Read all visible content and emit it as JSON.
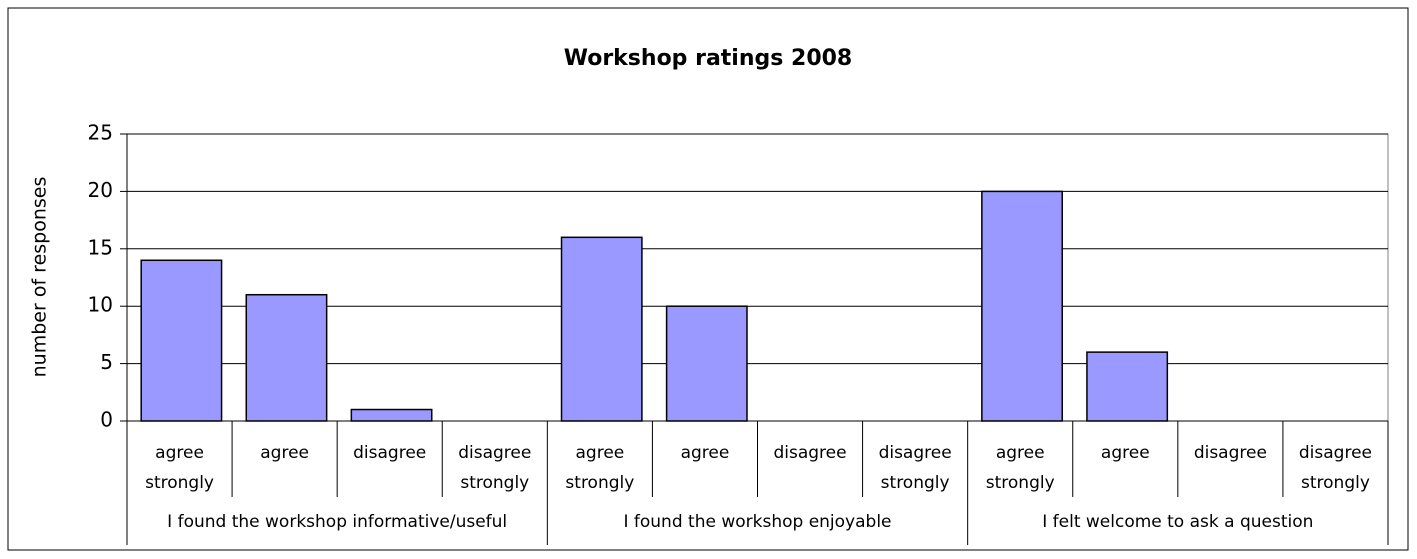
{
  "chart_data": {
    "type": "bar",
    "title": "Workshop ratings 2008",
    "ylabel": "number of responses",
    "categories": [
      "agree strongly",
      "agree",
      "disagree",
      "disagree strongly",
      "agree strongly",
      "agree",
      "disagree",
      "disagree strongly",
      "agree strongly",
      "agree",
      "disagree",
      "disagree strongly"
    ],
    "groups": [
      "I found the workshop informative/useful",
      "I found the workshop enjoyable",
      "I felt welcome to ask a question"
    ],
    "values": [
      14,
      11,
      1,
      0,
      16,
      10,
      0,
      0,
      20,
      6,
      0,
      0
    ],
    "color": "#9999ff",
    "ylim": [
      0,
      25
    ],
    "yticks": [
      0,
      5,
      10,
      15,
      20,
      25
    ],
    "grid": true
  }
}
